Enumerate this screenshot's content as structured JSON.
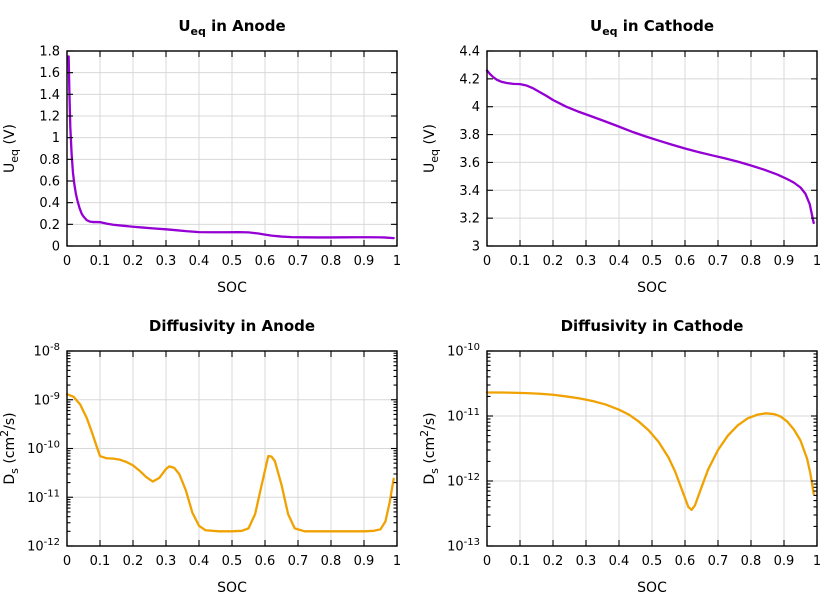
{
  "style": {
    "background": "#ffffff",
    "grid_color": "#d8d8d8",
    "axis_color": "#000000",
    "anode_ocv_color": "#9400d3",
    "cathode_ocv_color": "#9400d3",
    "diffusivity_color": "#f0a202"
  },
  "chart_data": [
    {
      "id": "ueq-anode",
      "type": "line",
      "title": [
        {
          "t": "U"
        },
        {
          "t": "eq",
          "pos": "sub"
        },
        {
          "t": " in Anode"
        }
      ],
      "xlabel": "SOC",
      "ylabel": [
        {
          "t": "U"
        },
        {
          "t": "eq",
          "pos": "sub"
        },
        {
          "t": " (V)"
        }
      ],
      "xlim": [
        0,
        1
      ],
      "ylim": [
        0,
        1.8
      ],
      "yscale": "linear",
      "grid": true,
      "legend": "none",
      "line_color": "#9400d3",
      "xticks": {
        "values": [
          0,
          0.1,
          0.2,
          0.3,
          0.4,
          0.5,
          0.6,
          0.7,
          0.8,
          0.9,
          1
        ],
        "labels": [
          "0",
          "0.1",
          "0.2",
          "0.3",
          "0.4",
          "0.5",
          "0.6",
          "0.7",
          "0.8",
          "0.9",
          "1"
        ]
      },
      "yticks": {
        "values": [
          0,
          0.2,
          0.4,
          0.6,
          0.8,
          1,
          1.2,
          1.4,
          1.6,
          1.8
        ],
        "labels": [
          "0",
          "0.2",
          "0.4",
          "0.6",
          "0.8",
          "1",
          "1.2",
          "1.4",
          "1.6",
          "1.8"
        ]
      },
      "x": [
        0.005,
        0.007,
        0.01,
        0.014,
        0.018,
        0.022,
        0.027,
        0.032,
        0.038,
        0.045,
        0.05,
        0.06,
        0.07,
        0.08,
        0.09,
        0.1,
        0.12,
        0.14,
        0.16,
        0.18,
        0.2,
        0.23,
        0.26,
        0.3,
        0.33,
        0.36,
        0.4,
        0.44,
        0.48,
        0.52,
        0.55,
        0.58,
        0.6,
        0.62,
        0.65,
        0.68,
        0.72,
        0.76,
        0.8,
        0.84,
        0.88,
        0.92,
        0.96,
        0.99
      ],
      "y": [
        1.75,
        1.45,
        1.1,
        0.85,
        0.68,
        0.575,
        0.48,
        0.415,
        0.35,
        0.295,
        0.272,
        0.238,
        0.225,
        0.221,
        0.221,
        0.22,
        0.207,
        0.196,
        0.19,
        0.184,
        0.178,
        0.17,
        0.163,
        0.154,
        0.146,
        0.137,
        0.128,
        0.127,
        0.127,
        0.128,
        0.126,
        0.115,
        0.105,
        0.096,
        0.087,
        0.082,
        0.08,
        0.079,
        0.079,
        0.08,
        0.081,
        0.081,
        0.079,
        0.073
      ]
    },
    {
      "id": "ueq-cathode",
      "type": "line",
      "title": [
        {
          "t": "U"
        },
        {
          "t": "eq",
          "pos": "sub"
        },
        {
          "t": " in Cathode"
        }
      ],
      "xlabel": "SOC",
      "ylabel": [
        {
          "t": "U"
        },
        {
          "t": "eq",
          "pos": "sub"
        },
        {
          "t": " (V)"
        }
      ],
      "xlim": [
        0,
        1
      ],
      "ylim": [
        3,
        4.4
      ],
      "yscale": "linear",
      "grid": true,
      "legend": "none",
      "line_color": "#9400d3",
      "xticks": {
        "values": [
          0,
          0.1,
          0.2,
          0.3,
          0.4,
          0.5,
          0.6,
          0.7,
          0.8,
          0.9,
          1
        ],
        "labels": [
          "0",
          "0.1",
          "0.2",
          "0.3",
          "0.4",
          "0.5",
          "0.6",
          "0.7",
          "0.8",
          "0.9",
          "1"
        ]
      },
      "yticks": {
        "values": [
          3,
          3.2,
          3.4,
          3.6,
          3.8,
          4,
          4.2,
          4.4
        ],
        "labels": [
          "3",
          "3.2",
          "3.4",
          "3.6",
          "3.8",
          "4",
          "4.2",
          "4.4"
        ]
      },
      "x": [
        0,
        0.01,
        0.02,
        0.03,
        0.045,
        0.06,
        0.08,
        0.1,
        0.12,
        0.14,
        0.16,
        0.18,
        0.2,
        0.24,
        0.28,
        0.32,
        0.36,
        0.4,
        0.44,
        0.48,
        0.52,
        0.56,
        0.6,
        0.64,
        0.68,
        0.72,
        0.76,
        0.8,
        0.84,
        0.88,
        0.91,
        0.93,
        0.95,
        0.965,
        0.978,
        0.99
      ],
      "y": [
        4.26,
        4.232,
        4.21,
        4.193,
        4.178,
        4.17,
        4.164,
        4.162,
        4.152,
        4.132,
        4.105,
        4.078,
        4.048,
        4.0,
        3.962,
        3.928,
        3.893,
        3.857,
        3.82,
        3.787,
        3.757,
        3.728,
        3.7,
        3.675,
        3.652,
        3.63,
        3.606,
        3.578,
        3.548,
        3.513,
        3.48,
        3.455,
        3.42,
        3.375,
        3.3,
        3.165
      ]
    },
    {
      "id": "diffusivity-anode",
      "type": "line",
      "title": [
        {
          "t": "Diffusivity in Anode"
        }
      ],
      "xlabel": "SOC",
      "ylabel": [
        {
          "t": "D"
        },
        {
          "t": "s",
          "pos": "sub"
        },
        {
          "t": " (cm"
        },
        {
          "t": "2",
          "pos": "sup"
        },
        {
          "t": "/s)"
        }
      ],
      "xlim": [
        0,
        1
      ],
      "ylim": [
        1e-12,
        1e-08
      ],
      "yscale": "log",
      "grid": true,
      "legend": "none",
      "line_color": "#f0a202",
      "xticks": {
        "values": [
          0,
          0.1,
          0.2,
          0.3,
          0.4,
          0.5,
          0.6,
          0.7,
          0.8,
          0.9,
          1
        ],
        "labels": [
          "0",
          "0.1",
          "0.2",
          "0.3",
          "0.4",
          "0.5",
          "0.6",
          "0.7",
          "0.8",
          "0.9",
          "1"
        ]
      },
      "yticks": {
        "values": [
          1e-12,
          1e-11,
          1e-10,
          1e-09,
          1e-08
        ],
        "labels": [
          [
            {
              "t": "10"
            },
            {
              "t": "-12",
              "pos": "sup"
            }
          ],
          [
            {
              "t": "10"
            },
            {
              "t": "-11",
              "pos": "sup"
            }
          ],
          [
            {
              "t": "10"
            },
            {
              "t": "-10",
              "pos": "sup"
            }
          ],
          [
            {
              "t": "10"
            },
            {
              "t": "-9",
              "pos": "sup"
            }
          ],
          [
            {
              "t": "10"
            },
            {
              "t": "-8",
              "pos": "sup"
            }
          ]
        ]
      },
      "x": [
        0,
        0.02,
        0.04,
        0.06,
        0.075,
        0.09,
        0.1,
        0.12,
        0.14,
        0.16,
        0.18,
        0.2,
        0.22,
        0.24,
        0.26,
        0.28,
        0.3,
        0.31,
        0.325,
        0.34,
        0.36,
        0.38,
        0.4,
        0.42,
        0.46,
        0.5,
        0.53,
        0.55,
        0.57,
        0.59,
        0.61,
        0.62,
        0.63,
        0.65,
        0.67,
        0.69,
        0.72,
        0.76,
        0.8,
        0.85,
        0.9,
        0.93,
        0.95,
        0.965,
        0.978,
        0.99
      ],
      "y": [
        1.3e-09,
        1.15e-09,
        8e-10,
        4.2e-10,
        2.2e-10,
        1.1e-10,
        7e-11,
        6.3e-11,
        6.2e-11,
        5.9e-11,
        5.3e-11,
        4.5e-11,
        3.5e-11,
        2.6e-11,
        2.1e-11,
        2.5e-11,
        3.8e-11,
        4.3e-11,
        4e-11,
        3e-11,
        1.4e-11,
        4.8e-12,
        2.6e-12,
        2.1e-12,
        2e-12,
        2e-12,
        2.05e-12,
        2.3e-12,
        4.5e-12,
        1.8e-11,
        7e-11,
        6.8e-11,
        5.5e-11,
        1.8e-11,
        4.5e-12,
        2.3e-12,
        2e-12,
        2e-12,
        2e-12,
        2e-12,
        2e-12,
        2.05e-12,
        2.2e-12,
        3.2e-12,
        8e-12,
        2.4e-11
      ]
    },
    {
      "id": "diffusivity-cathode",
      "type": "line",
      "title": [
        {
          "t": "Diffusivity in Cathode"
        }
      ],
      "xlabel": "SOC",
      "ylabel": [
        {
          "t": "D"
        },
        {
          "t": "s",
          "pos": "sub"
        },
        {
          "t": " (cm"
        },
        {
          "t": "2",
          "pos": "sup"
        },
        {
          "t": "/s)"
        }
      ],
      "xlim": [
        0,
        1
      ],
      "ylim": [
        1e-13,
        1e-10
      ],
      "yscale": "log",
      "grid": true,
      "legend": "none",
      "line_color": "#f0a202",
      "xticks": {
        "values": [
          0,
          0.1,
          0.2,
          0.3,
          0.4,
          0.5,
          0.6,
          0.7,
          0.8,
          0.9,
          1
        ],
        "labels": [
          "0",
          "0.1",
          "0.2",
          "0.3",
          "0.4",
          "0.5",
          "0.6",
          "0.7",
          "0.8",
          "0.9",
          "1"
        ]
      },
      "yticks": {
        "values": [
          1e-13,
          1e-12,
          1e-11,
          1e-10
        ],
        "labels": [
          [
            {
              "t": "10"
            },
            {
              "t": "-13",
              "pos": "sup"
            }
          ],
          [
            {
              "t": "10"
            },
            {
              "t": "-12",
              "pos": "sup"
            }
          ],
          [
            {
              "t": "10"
            },
            {
              "t": "-11",
              "pos": "sup"
            }
          ],
          [
            {
              "t": "10"
            },
            {
              "t": "-10",
              "pos": "sup"
            }
          ]
        ]
      },
      "x": [
        0,
        0.04,
        0.08,
        0.12,
        0.16,
        0.2,
        0.24,
        0.28,
        0.32,
        0.36,
        0.4,
        0.43,
        0.46,
        0.49,
        0.52,
        0.55,
        0.57,
        0.59,
        0.61,
        0.62,
        0.63,
        0.65,
        0.67,
        0.7,
        0.73,
        0.76,
        0.79,
        0.82,
        0.845,
        0.87,
        0.89,
        0.91,
        0.93,
        0.95,
        0.97,
        0.98,
        0.99
      ],
      "y": [
        2.3e-11,
        2.3e-11,
        2.28e-11,
        2.25e-11,
        2.2e-11,
        2.12e-11,
        2e-11,
        1.87e-11,
        1.7e-11,
        1.5e-11,
        1.25e-11,
        1.05e-11,
        8.2e-12,
        6e-12,
        4e-12,
        2.3e-12,
        1.4e-12,
        7.5e-13,
        4e-13,
        3.6e-13,
        4.2e-13,
        8e-13,
        1.5e-12,
        3e-12,
        5e-12,
        7.2e-12,
        9.2e-12,
        1.05e-11,
        1.1e-11,
        1.07e-11,
        9.8e-12,
        8.2e-12,
        6.2e-12,
        4.2e-12,
        2.2e-12,
        1.3e-12,
        6.3e-13
      ]
    }
  ]
}
